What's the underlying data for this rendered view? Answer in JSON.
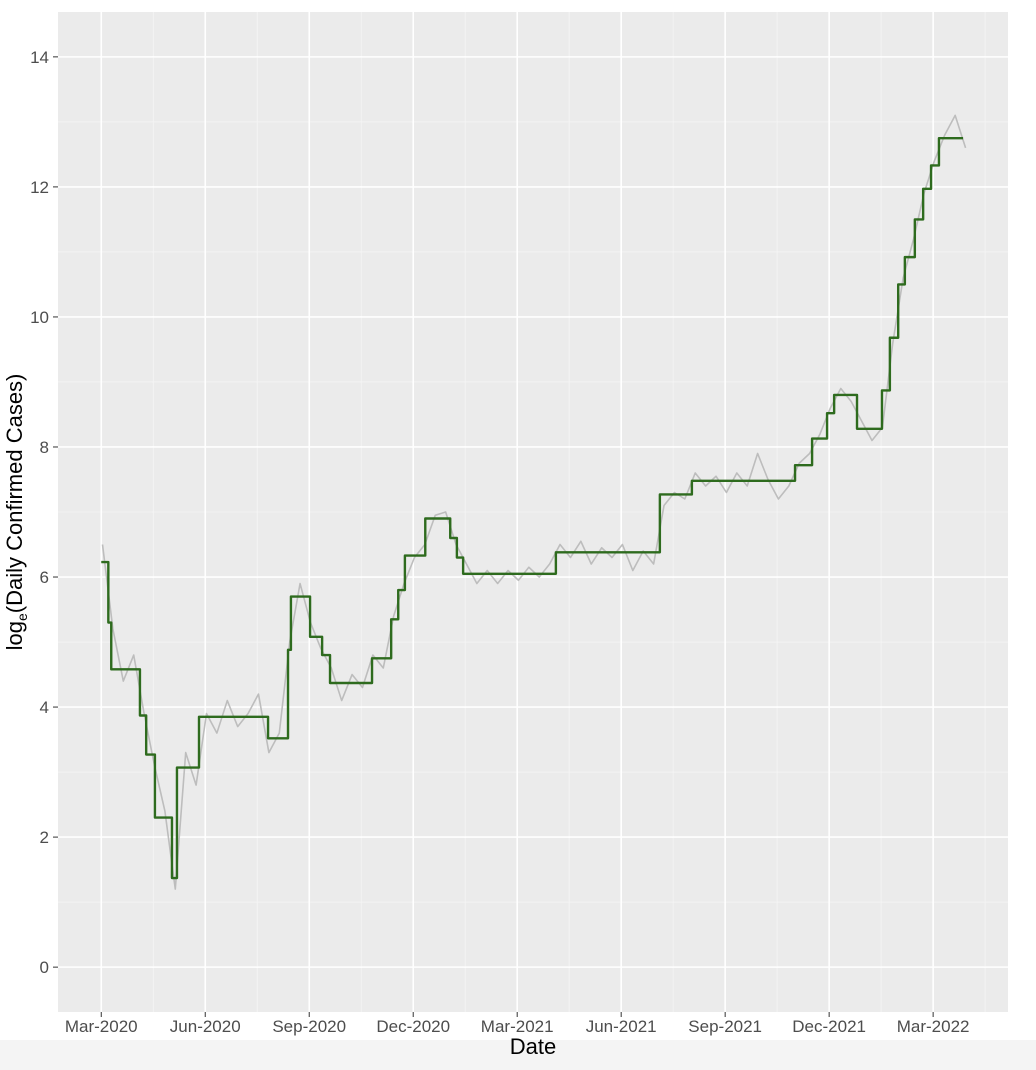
{
  "chart_data": {
    "type": "line",
    "x_label": "Date",
    "y_label_parts": [
      "log",
      "e",
      "(Daily Confirmed Cases)"
    ],
    "xlim": [
      2020.063,
      2022.347
    ],
    "ylim": [
      -0.69,
      14.69
    ],
    "xticks": [
      {
        "value": 2020.167,
        "label": "Mar-2020"
      },
      {
        "value": 2020.417,
        "label": "Jun-2020"
      },
      {
        "value": 2020.667,
        "label": "Sep-2020"
      },
      {
        "value": 2020.917,
        "label": "Dec-2020"
      },
      {
        "value": 2021.167,
        "label": "Mar-2021"
      },
      {
        "value": 2021.417,
        "label": "Jun-2021"
      },
      {
        "value": 2021.667,
        "label": "Sep-2021"
      },
      {
        "value": 2021.917,
        "label": "Dec-2021"
      },
      {
        "value": 2022.167,
        "label": "Mar-2022"
      }
    ],
    "x_minor_ticks": [
      2020.292,
      2020.542,
      2020.792,
      2021.042,
      2021.292,
      2021.542,
      2021.792,
      2022.042,
      2022.292
    ],
    "yticks": [
      0,
      2,
      4,
      6,
      8,
      10,
      12,
      14
    ],
    "y_minor_ticks": [
      1,
      3,
      5,
      7,
      9,
      11,
      13
    ],
    "grid": true,
    "series": [
      {
        "color": "#bdbdbd",
        "step": false,
        "x": [
          2020.17,
          2020.195,
          2020.22,
          2020.245,
          2020.27,
          2020.295,
          2020.32,
          2020.345,
          2020.37,
          2020.395,
          2020.42,
          2020.445,
          2020.47,
          2020.495,
          2020.52,
          2020.545,
          2020.57,
          2020.595,
          2020.62,
          2020.645,
          2020.67,
          2020.695,
          2020.72,
          2020.745,
          2020.77,
          2020.795,
          2020.82,
          2020.845,
          2020.87,
          2020.895,
          2020.92,
          2020.945,
          2020.97,
          2020.995,
          2021.02,
          2021.045,
          2021.07,
          2021.095,
          2021.12,
          2021.145,
          2021.17,
          2021.195,
          2021.22,
          2021.245,
          2021.27,
          2021.295,
          2021.32,
          2021.345,
          2021.37,
          2021.395,
          2021.42,
          2021.445,
          2021.47,
          2021.495,
          2021.52,
          2021.545,
          2021.57,
          2021.595,
          2021.62,
          2021.645,
          2021.67,
          2021.695,
          2021.72,
          2021.745,
          2021.77,
          2021.795,
          2021.82,
          2021.845,
          2021.87,
          2021.895,
          2021.92,
          2021.945,
          2021.97,
          2021.995,
          2022.02,
          2022.045,
          2022.07,
          2022.095,
          2022.12,
          2022.145,
          2022.17,
          2022.195,
          2022.22,
          2022.245
        ],
        "values": [
          6.5,
          5.2,
          4.4,
          4.8,
          3.9,
          3.1,
          2.4,
          1.2,
          3.3,
          2.8,
          3.9,
          3.6,
          4.1,
          3.7,
          3.9,
          4.2,
          3.3,
          3.6,
          5.0,
          5.9,
          5.3,
          4.9,
          4.6,
          4.1,
          4.5,
          4.3,
          4.8,
          4.6,
          5.4,
          5.9,
          6.3,
          6.5,
          6.95,
          7.0,
          6.5,
          6.2,
          5.9,
          6.1,
          5.9,
          6.1,
          5.95,
          6.15,
          6.0,
          6.2,
          6.5,
          6.3,
          6.55,
          6.2,
          6.45,
          6.3,
          6.5,
          6.1,
          6.4,
          6.2,
          7.1,
          7.3,
          7.2,
          7.6,
          7.4,
          7.55,
          7.3,
          7.6,
          7.4,
          7.9,
          7.5,
          7.2,
          7.4,
          7.75,
          7.9,
          8.2,
          8.6,
          8.9,
          8.7,
          8.4,
          8.1,
          8.3,
          9.6,
          10.6,
          11.2,
          11.9,
          12.4,
          12.8,
          13.1,
          12.6
        ]
      },
      {
        "color": "#2e6b1e",
        "step": true,
        "x": [
          2020.167,
          2020.184,
          2020.191,
          2020.26,
          2020.275,
          2020.296,
          2020.337,
          2020.349,
          2020.402,
          2020.568,
          2020.616,
          2020.623,
          2020.669,
          2020.698,
          2020.717,
          2020.818,
          2020.864,
          2020.881,
          2020.897,
          2020.946,
          2021.006,
          2021.022,
          2021.037,
          2021.26,
          2021.51,
          2021.587,
          2021.835,
          2021.876,
          2021.912,
          2021.929,
          2021.984,
          2022.044,
          2022.063,
          2022.083,
          2022.099,
          2022.123,
          2022.143,
          2022.162,
          2022.181,
          2022.239
        ],
        "values": [
          6.23,
          5.3,
          4.58,
          3.87,
          3.27,
          2.3,
          1.37,
          3.07,
          3.85,
          3.52,
          4.88,
          5.7,
          5.08,
          4.8,
          4.37,
          4.75,
          5.35,
          5.8,
          6.33,
          6.9,
          6.6,
          6.3,
          6.05,
          6.38,
          7.27,
          7.48,
          7.72,
          8.13,
          8.52,
          8.8,
          8.28,
          8.87,
          9.68,
          10.5,
          10.92,
          11.5,
          11.97,
          12.33,
          12.75,
          12.75
        ]
      }
    ]
  }
}
